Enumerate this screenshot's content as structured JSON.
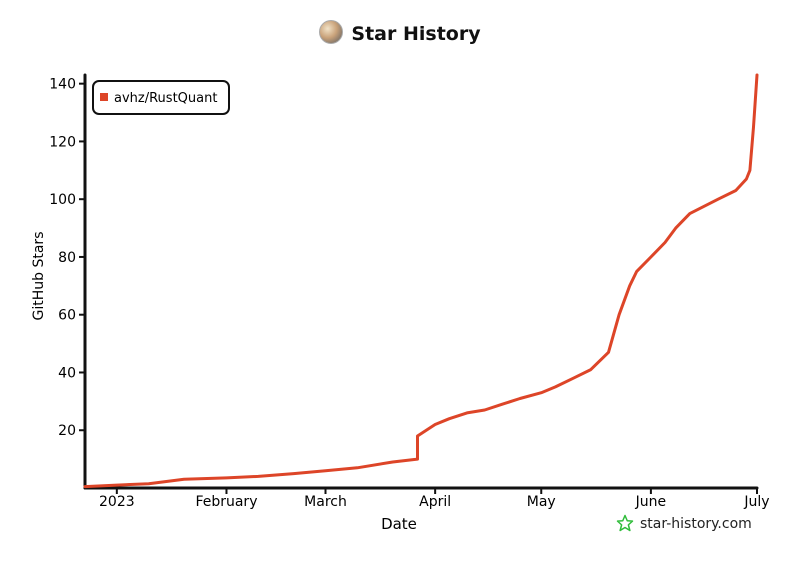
{
  "header": {
    "title": "Star History",
    "avatar_icon": "repo-owner-avatar-icon"
  },
  "watermark": {
    "text": "star-history.com",
    "icon": "star-outline-icon",
    "color": "#2fbc3a"
  },
  "chart_data": {
    "type": "line",
    "title": "Star History",
    "xlabel": "Date",
    "ylabel": "GitHub Stars",
    "x_ticks": [
      {
        "date": "2023-01-01",
        "label": "2023"
      },
      {
        "date": "2023-02-01",
        "label": "February"
      },
      {
        "date": "2023-03-01",
        "label": "March"
      },
      {
        "date": "2023-04-01",
        "label": "April"
      },
      {
        "date": "2023-05-01",
        "label": "May"
      },
      {
        "date": "2023-06-01",
        "label": "June"
      },
      {
        "date": "2023-07-01",
        "label": "July"
      }
    ],
    "y_ticks": [
      20,
      40,
      60,
      80,
      100,
      120,
      140
    ],
    "xlim": [
      "2022-12-23",
      "2023-07-01"
    ],
    "ylim": [
      0,
      143
    ],
    "grid": false,
    "legend": {
      "placement": "top-left"
    },
    "series": [
      {
        "name": "avhz/RustQuant",
        "color": "#dd4528",
        "points": [
          [
            "2022-12-23",
            0.5
          ],
          [
            "2023-01-01",
            1
          ],
          [
            "2023-01-10",
            1.5
          ],
          [
            "2023-01-20",
            3
          ],
          [
            "2023-02-01",
            3.5
          ],
          [
            "2023-02-10",
            4
          ],
          [
            "2023-02-20",
            5
          ],
          [
            "2023-03-01",
            6
          ],
          [
            "2023-03-10",
            7
          ],
          [
            "2023-03-20",
            9
          ],
          [
            "2023-03-27",
            10
          ],
          [
            "2023-03-27",
            18
          ],
          [
            "2023-04-01",
            22
          ],
          [
            "2023-04-05",
            24
          ],
          [
            "2023-04-10",
            26
          ],
          [
            "2023-04-15",
            27
          ],
          [
            "2023-04-20",
            29
          ],
          [
            "2023-04-25",
            31
          ],
          [
            "2023-05-01",
            33
          ],
          [
            "2023-05-05",
            35
          ],
          [
            "2023-05-10",
            38
          ],
          [
            "2023-05-15",
            41
          ],
          [
            "2023-05-20",
            47
          ],
          [
            "2023-05-23",
            60
          ],
          [
            "2023-05-26",
            70
          ],
          [
            "2023-05-28",
            75
          ],
          [
            "2023-06-01",
            80
          ],
          [
            "2023-06-05",
            85
          ],
          [
            "2023-06-08",
            90
          ],
          [
            "2023-06-12",
            95
          ],
          [
            "2023-06-20",
            100
          ],
          [
            "2023-06-25",
            103
          ],
          [
            "2023-06-28",
            107
          ],
          [
            "2023-06-29",
            110
          ],
          [
            "2023-06-30",
            125
          ],
          [
            "2023-07-01",
            143
          ]
        ]
      }
    ]
  }
}
